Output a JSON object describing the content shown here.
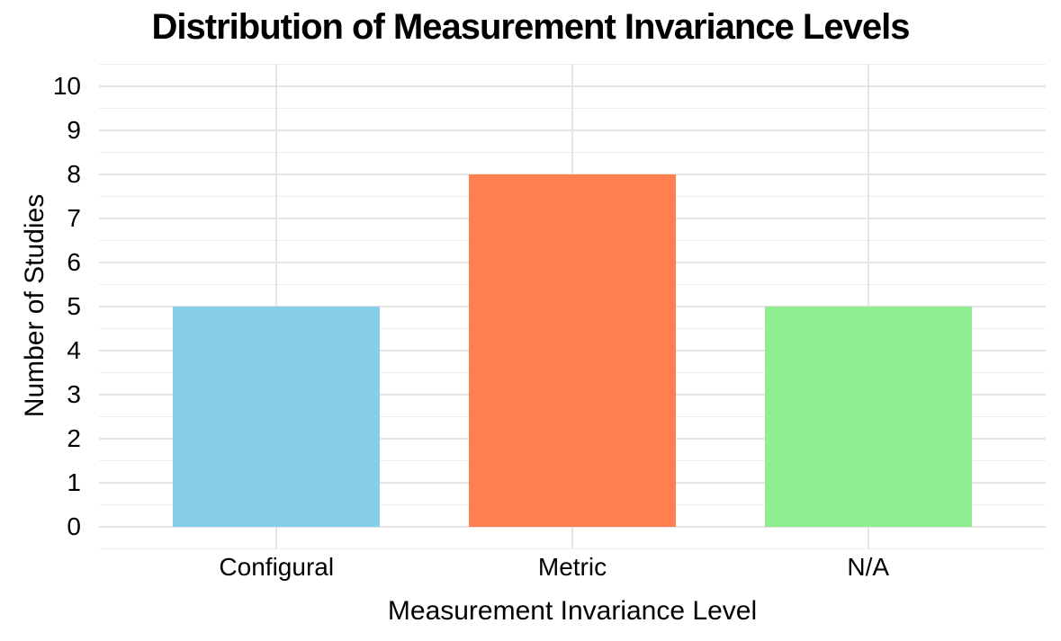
{
  "chart_data": {
    "type": "bar",
    "title": "Distribution of Measurement Invariance Levels",
    "xlabel": "Measurement Invariance Level",
    "ylabel": "Number of Studies",
    "categories": [
      "Configural",
      "Metric",
      "N/A"
    ],
    "values": [
      5,
      8,
      5
    ],
    "bar_colors": [
      "#87CEEB",
      "#FF7F50",
      "#90EE90"
    ],
    "ylim": [
      0,
      10
    ],
    "ytick_values": [
      0,
      1,
      2,
      3,
      4,
      5,
      6,
      7,
      8,
      9,
      10
    ],
    "yminor_step": 0.5,
    "bar_width_fraction": 0.7,
    "grid": "horizontal major+minor, vertical major at category centers",
    "legend": "none",
    "background_color": "#FFFFFF",
    "major_grid_color": "#E5E5E5",
    "minor_grid_color": "#EDEDED",
    "text_color": "#000000"
  }
}
